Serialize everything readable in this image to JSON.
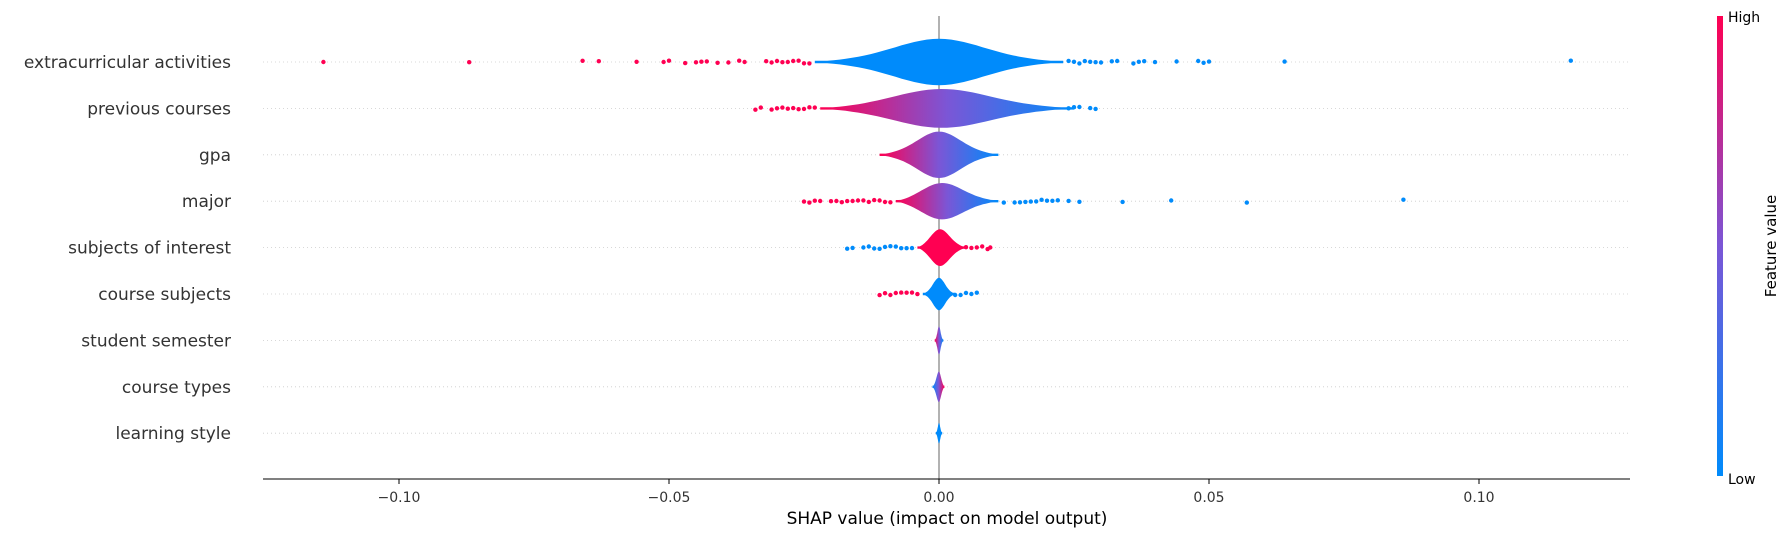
{
  "chart_data": {
    "type": "scatter",
    "subtype": "shap-violin-summary",
    "title": "",
    "xlabel": "SHAP value (impact on model output)",
    "ylabel": "",
    "xlim": [
      -0.125,
      0.128
    ],
    "xticks": [
      {
        "value": -0.1,
        "label": "−0.10"
      },
      {
        "value": -0.05,
        "label": "−0.05"
      },
      {
        "value": 0.0,
        "label": "0.00"
      },
      {
        "value": 0.05,
        "label": "0.05"
      },
      {
        "value": 0.1,
        "label": "0.10"
      }
    ],
    "grid": false,
    "colors": {
      "high": "#ff0052",
      "low": "#008bfb",
      "mid": "#7b56d6",
      "zero_line": "#999999"
    },
    "colorbar": {
      "title": "Feature value",
      "high_label": "High",
      "low_label": "Low"
    },
    "features": [
      {
        "name": "extracurricular activities",
        "violin": {
          "x_min": -0.023,
          "x_max": 0.023,
          "peak_halfwidth": 0.5,
          "color_left": "#008bfb",
          "color_right": "#008bfb"
        },
        "high_points": [
          -0.114,
          -0.087,
          -0.066,
          -0.063,
          -0.056,
          -0.051,
          -0.05,
          -0.047,
          -0.045,
          -0.044,
          -0.043,
          -0.041,
          -0.039,
          -0.037,
          -0.036,
          -0.032,
          -0.031,
          -0.03,
          -0.029,
          -0.028,
          -0.027,
          -0.026,
          -0.025,
          -0.024
        ],
        "low_points": [
          0.024,
          0.025,
          0.026,
          0.027,
          0.028,
          0.029,
          0.03,
          0.032,
          0.033,
          0.036,
          0.037,
          0.038,
          0.04,
          0.044,
          0.048,
          0.049,
          0.05,
          0.064,
          0.117
        ]
      },
      {
        "name": "previous courses",
        "violin": {
          "x_min": -0.022,
          "x_max": 0.025,
          "peak_halfwidth": 0.42,
          "color_left": "#ff0052",
          "color_right": "#008bfb"
        },
        "high_points": [
          -0.034,
          -0.033,
          -0.031,
          -0.03,
          -0.029,
          -0.028,
          -0.027,
          -0.026,
          -0.025,
          -0.024,
          -0.023
        ],
        "low_points": [
          0.024,
          0.025,
          0.026,
          0.028,
          0.029
        ]
      },
      {
        "name": "gpa",
        "violin": {
          "x_min": -0.011,
          "x_max": 0.011,
          "peak_halfwidth": 0.5,
          "color_left": "#ff0052",
          "color_right": "#008bfb"
        },
        "high_points": [],
        "low_points": []
      },
      {
        "name": "major",
        "violin": {
          "x_min": -0.008,
          "x_max": 0.011,
          "peak_halfwidth": 0.4,
          "color_left": "#ff0052",
          "color_right": "#008bfb"
        },
        "high_points": [
          -0.025,
          -0.024,
          -0.023,
          -0.022,
          -0.02,
          -0.019,
          -0.018,
          -0.017,
          -0.016,
          -0.015,
          -0.014,
          -0.013,
          -0.012,
          -0.011,
          -0.01,
          -0.009
        ],
        "low_points": [
          0.012,
          0.014,
          0.015,
          0.016,
          0.017,
          0.018,
          0.019,
          0.02,
          0.021,
          0.022,
          0.024,
          0.026,
          0.034,
          0.043,
          0.057,
          0.086
        ]
      },
      {
        "name": "subjects of interest",
        "violin": {
          "x_min": -0.004,
          "x_max": 0.005,
          "peak_halfwidth": 0.4,
          "color_left": "#ff0052",
          "color_right": "#ff0052"
        },
        "high_points": [
          0.005,
          0.006,
          0.007,
          0.008,
          0.009,
          0.0095
        ],
        "low_points": [
          -0.017,
          -0.016,
          -0.014,
          -0.013,
          -0.012,
          -0.011,
          -0.01,
          -0.009,
          -0.008,
          -0.007,
          -0.006,
          -0.005
        ]
      },
      {
        "name": "course subjects",
        "violin": {
          "x_min": -0.003,
          "x_max": 0.003,
          "peak_halfwidth": 0.35,
          "color_left": "#008bfb",
          "color_right": "#008bfb"
        },
        "high_points": [
          -0.011,
          -0.01,
          -0.009,
          -0.008,
          -0.007,
          -0.006,
          -0.005,
          -0.004
        ],
        "low_points": [
          0.003,
          0.004,
          0.005,
          0.006,
          0.007
        ]
      },
      {
        "name": "student semester",
        "violin": {
          "x_min": -0.0008,
          "x_max": 0.0008,
          "peak_halfwidth": 0.3,
          "color_left": "#ff0052",
          "color_right": "#008bfb"
        },
        "high_points": [],
        "low_points": []
      },
      {
        "name": "course types",
        "violin": {
          "x_min": -0.0012,
          "x_max": 0.001,
          "peak_halfwidth": 0.33,
          "color_left": "#008bfb",
          "color_right": "#ff0052"
        },
        "high_points": [],
        "low_points": []
      },
      {
        "name": "learning style",
        "violin": {
          "x_min": -0.0006,
          "x_max": 0.0006,
          "peak_halfwidth": 0.22,
          "color_left": "#008bfb",
          "color_right": "#008bfb"
        },
        "high_points": [],
        "low_points": []
      }
    ]
  }
}
